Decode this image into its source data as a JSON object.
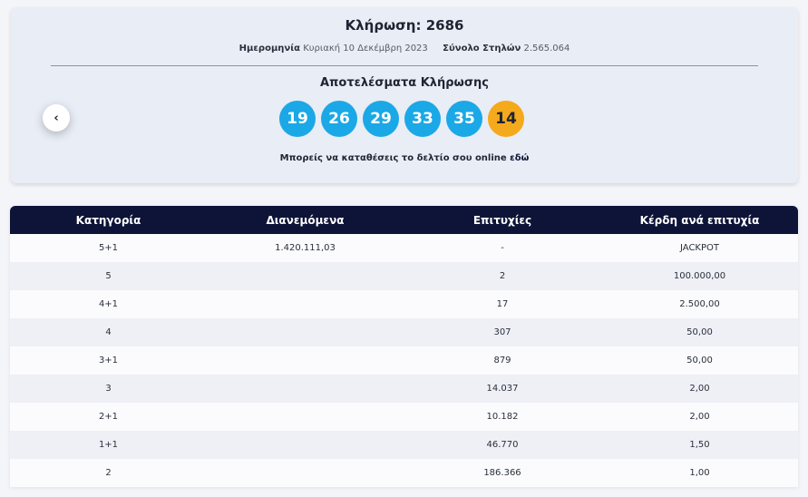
{
  "draw": {
    "title": "Κλήρωση: 2686",
    "date_label": "Ημερομηνία",
    "date_value": "Κυριακή 10 Δεκέμβρη 2023",
    "columns_label": "Σύνολο Στηλών",
    "columns_value": "2.565.064"
  },
  "results": {
    "title": "Αποτελέσματα Κλήρωσης",
    "numbers": [
      "19",
      "26",
      "29",
      "33",
      "35"
    ],
    "bonus": "14",
    "number_color": "#1ba8e6",
    "bonus_color": "#f5a91c"
  },
  "online": {
    "text": "Μπορείς να καταθέσεις το δελτίο σου online",
    "link": "εδώ"
  },
  "nav": {
    "prev_icon": "chevron-left-icon"
  },
  "table": {
    "headers": [
      "Κατηγορία",
      "Διανεμόμενα",
      "Επιτυχίες",
      "Κέρδη ανά επιτυχία"
    ],
    "rows": [
      [
        "5+1",
        "1.420.111,03",
        "-",
        "JACKPOT"
      ],
      [
        "5",
        "",
        "2",
        "100.000,00"
      ],
      [
        "4+1",
        "",
        "17",
        "2.500,00"
      ],
      [
        "4",
        "",
        "307",
        "50,00"
      ],
      [
        "3+1",
        "",
        "879",
        "50,00"
      ],
      [
        "3",
        "",
        "14.037",
        "2,00"
      ],
      [
        "2+1",
        "",
        "10.182",
        "2,00"
      ],
      [
        "1+1",
        "",
        "46.770",
        "1,50"
      ],
      [
        "2",
        "",
        "186.366",
        "1,00"
      ]
    ],
    "header_color": "#0e1438"
  }
}
